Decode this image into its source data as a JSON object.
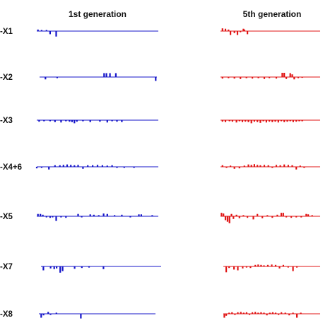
{
  "chart_data": {
    "type": "bar",
    "columns": [
      {
        "title": "1st generation",
        "color": "#1515c8"
      },
      {
        "title": "5th generation",
        "color": "#e01515"
      }
    ],
    "rows": [
      {
        "label": "-X1",
        "panels": [
          [
            [
              0.01,
              0.4
            ],
            [
              0.04,
              0.3
            ],
            [
              0.08,
              0.3
            ],
            [
              0.11,
              -0.8
            ],
            [
              0.16,
              -1.4
            ]
          ],
          [
            [
              0.02,
              0.7
            ],
            [
              0.05,
              0.6
            ],
            [
              0.08,
              0.4
            ],
            [
              0.1,
              -1.0
            ],
            [
              0.14,
              -0.5
            ],
            [
              0.17,
              -1.0
            ],
            [
              0.2,
              -0.3
            ],
            [
              0.23,
              0.6
            ],
            [
              0.27,
              -0.8
            ],
            [
              0.24,
              0.4
            ]
          ]
        ]
      },
      {
        "label": "-X2",
        "panels": [
          [
            [
              0.05,
              -0.6
            ],
            [
              0.15,
              -0.3
            ],
            [
              0.55,
              1.0
            ],
            [
              0.57,
              1.0
            ],
            [
              0.6,
              1.0
            ],
            [
              0.65,
              1.0
            ],
            [
              0.99,
              -1.0
            ]
          ],
          [
            [
              0.02,
              -0.4
            ],
            [
              0.08,
              -0.3
            ],
            [
              0.14,
              -0.4
            ],
            [
              0.2,
              -0.5
            ],
            [
              0.26,
              -0.3
            ],
            [
              0.32,
              -0.4
            ],
            [
              0.38,
              -0.3
            ],
            [
              0.44,
              -0.5
            ],
            [
              0.49,
              -0.3
            ],
            [
              0.56,
              -0.4
            ],
            [
              0.62,
              1.1
            ],
            [
              0.64,
              1.1
            ],
            [
              0.66,
              -0.5
            ],
            [
              0.7,
              1.0
            ],
            [
              0.72,
              0.7
            ],
            [
              0.74,
              -0.6
            ],
            [
              0.78,
              -0.3
            ],
            [
              0.82,
              -0.2
            ]
          ]
        ]
      },
      {
        "label": "-X3",
        "panels": [
          [
            [
              0.02,
              -0.4
            ],
            [
              0.06,
              -0.3
            ],
            [
              0.11,
              -0.3
            ],
            [
              0.15,
              -0.5
            ],
            [
              0.2,
              -0.6
            ],
            [
              0.24,
              -0.3
            ],
            [
              0.27,
              -0.4
            ],
            [
              0.29,
              -0.5
            ],
            [
              0.31,
              -0.8
            ],
            [
              0.33,
              -0.4
            ],
            [
              0.38,
              -0.3
            ],
            [
              0.44,
              -0.5
            ],
            [
              0.52,
              -0.4
            ],
            [
              0.58,
              -0.6
            ],
            [
              0.62,
              -0.3
            ],
            [
              0.66,
              -0.4
            ],
            [
              0.7,
              -0.5
            ]
          ],
          [
            [
              0.02,
              -0.4
            ],
            [
              0.05,
              -0.5
            ],
            [
              0.09,
              -0.3
            ],
            [
              0.12,
              -0.4
            ],
            [
              0.16,
              -0.6
            ],
            [
              0.19,
              -0.3
            ],
            [
              0.22,
              -0.5
            ],
            [
              0.25,
              -0.4
            ],
            [
              0.28,
              -0.5
            ],
            [
              0.31,
              -0.8
            ],
            [
              0.34,
              -0.4
            ],
            [
              0.37,
              -0.5
            ],
            [
              0.4,
              -0.7
            ],
            [
              0.43,
              -0.3
            ],
            [
              0.46,
              -0.6
            ],
            [
              0.49,
              -0.4
            ],
            [
              0.52,
              -0.5
            ],
            [
              0.55,
              -0.4
            ],
            [
              0.58,
              -0.6
            ],
            [
              0.61,
              -0.3
            ],
            [
              0.64,
              -0.5
            ],
            [
              0.67,
              -0.4
            ],
            [
              0.7,
              -0.3
            ],
            [
              0.73,
              -0.5
            ],
            [
              0.76,
              -0.4
            ],
            [
              0.79,
              -0.3
            ],
            [
              0.82,
              -0.3
            ]
          ]
        ]
      },
      {
        "label": "-X4+6",
        "panels": [
          [
            [
              0.0,
              -0.4
            ],
            [
              0.04,
              -0.3
            ],
            [
              0.1,
              -0.7
            ],
            [
              0.15,
              0.4
            ],
            [
              0.19,
              0.4
            ],
            [
              0.22,
              0.5
            ],
            [
              0.25,
              0.6
            ],
            [
              0.28,
              0.5
            ],
            [
              0.31,
              0.4
            ],
            [
              0.34,
              0.5
            ],
            [
              0.38,
              -0.5
            ],
            [
              0.42,
              0.4
            ],
            [
              0.46,
              0.4
            ],
            [
              0.5,
              0.5
            ],
            [
              0.54,
              0.4
            ],
            [
              0.58,
              0.3
            ],
            [
              0.62,
              0.4
            ],
            [
              0.66,
              -0.3
            ],
            [
              0.72,
              -0.3
            ],
            [
              0.8,
              -0.3
            ]
          ],
          [
            [
              0.02,
              0.4
            ],
            [
              0.06,
              -0.3
            ],
            [
              0.1,
              0.3
            ],
            [
              0.14,
              -0.5
            ],
            [
              0.19,
              -0.4
            ],
            [
              0.24,
              0.3
            ],
            [
              0.28,
              0.6
            ],
            [
              0.31,
              0.5
            ],
            [
              0.34,
              0.7
            ],
            [
              0.37,
              0.5
            ],
            [
              0.4,
              0.4
            ],
            [
              0.44,
              0.5
            ],
            [
              0.48,
              0.4
            ],
            [
              0.52,
              -0.3
            ],
            [
              0.56,
              0.5
            ],
            [
              0.6,
              0.4
            ],
            [
              0.64,
              0.6
            ],
            [
              0.68,
              0.5
            ],
            [
              0.72,
              0.4
            ],
            [
              0.76,
              -0.7
            ],
            [
              0.8,
              0.3
            ],
            [
              0.84,
              -0.3
            ]
          ]
        ]
      },
      {
        "label": "-X5",
        "panels": [
          [
            [
              0.01,
              0.6
            ],
            [
              0.03,
              0.6
            ],
            [
              0.05,
              0.4
            ],
            [
              0.08,
              -0.3
            ],
            [
              0.11,
              -0.4
            ],
            [
              0.13,
              -0.3
            ],
            [
              0.16,
              -1.2
            ],
            [
              0.2,
              -0.3
            ],
            [
              0.24,
              -0.4
            ],
            [
              0.34,
              0.6
            ],
            [
              0.37,
              -0.3
            ],
            [
              0.44,
              0.5
            ],
            [
              0.47,
              0.4
            ],
            [
              0.51,
              0.3
            ],
            [
              0.55,
              0.7
            ],
            [
              0.58,
              0.6
            ],
            [
              0.64,
              0.3
            ],
            [
              0.7,
              0.4
            ],
            [
              0.77,
              -0.3
            ],
            [
              0.84,
              0.5
            ],
            [
              0.86,
              0.5
            ],
            [
              0.95,
              0.3
            ]
          ],
          [
            [
              0.01,
              0.9
            ],
            [
              0.03,
              0.7
            ],
            [
              0.05,
              -1.0
            ],
            [
              0.07,
              -1.4
            ],
            [
              0.09,
              -1.8
            ],
            [
              0.11,
              0.6
            ],
            [
              0.13,
              -0.7
            ],
            [
              0.16,
              0.4
            ],
            [
              0.19,
              -0.5
            ],
            [
              0.23,
              0.3
            ],
            [
              0.27,
              -0.4
            ],
            [
              0.33,
              -0.8
            ],
            [
              0.37,
              0.6
            ],
            [
              0.42,
              -0.5
            ],
            [
              0.47,
              0.3
            ],
            [
              0.52,
              -0.4
            ],
            [
              0.57,
              0.4
            ],
            [
              0.61,
              0.9
            ],
            [
              0.63,
              0.9
            ],
            [
              0.66,
              -0.3
            ],
            [
              0.71,
              -0.4
            ],
            [
              0.76,
              -0.3
            ],
            [
              0.81,
              -0.3
            ],
            [
              0.86,
              0.6
            ],
            [
              0.88,
              0.5
            ],
            [
              0.92,
              0.3
            ]
          ]
        ]
      },
      {
        "label": "-X7",
        "panels": [
          [
            [
              0.02,
              -1.0
            ],
            [
              0.08,
              -0.5
            ],
            [
              0.11,
              -0.7
            ],
            [
              0.13,
              -0.5
            ],
            [
              0.16,
              -1.6
            ],
            [
              0.18,
              -1.2
            ],
            [
              0.28,
              -0.6
            ],
            [
              0.34,
              -0.4
            ],
            [
              0.4,
              -0.3
            ],
            [
              0.52,
              -0.7
            ]
          ],
          [
            [
              0.03,
              -1.5
            ],
            [
              0.06,
              -0.4
            ],
            [
              0.11,
              -0.8
            ],
            [
              0.15,
              -1.0
            ],
            [
              0.2,
              -0.5
            ],
            [
              0.24,
              -0.3
            ],
            [
              0.28,
              -0.4
            ],
            [
              0.33,
              0.4
            ],
            [
              0.36,
              0.5
            ],
            [
              0.39,
              0.4
            ],
            [
              0.42,
              0.3
            ],
            [
              0.46,
              0.4
            ],
            [
              0.5,
              0.5
            ],
            [
              0.54,
              0.4
            ],
            [
              0.58,
              -0.5
            ],
            [
              0.62,
              0.4
            ],
            [
              0.67,
              -0.3
            ],
            [
              0.72,
              -1.2
            ],
            [
              0.76,
              -0.3
            ]
          ]
        ]
      },
      {
        "label": "-X8",
        "panels": [
          [
            [
              0.02,
              -1.0
            ],
            [
              0.04,
              -0.4
            ],
            [
              0.08,
              0.5
            ],
            [
              0.1,
              -0.3
            ],
            [
              0.15,
              0.3
            ],
            [
              0.36,
              -1.2
            ]
          ],
          [
            [
              0.01,
              -1.0
            ],
            [
              0.03,
              -0.5
            ],
            [
              0.06,
              0.3
            ],
            [
              0.09,
              0.4
            ],
            [
              0.12,
              -0.3
            ],
            [
              0.15,
              0.4
            ],
            [
              0.18,
              0.5
            ],
            [
              0.21,
              0.3
            ],
            [
              0.24,
              0.4
            ],
            [
              0.27,
              -0.3
            ],
            [
              0.3,
              0.4
            ],
            [
              0.33,
              0.5
            ],
            [
              0.36,
              0.3
            ],
            [
              0.39,
              0.4
            ],
            [
              0.42,
              0.3
            ],
            [
              0.45,
              -0.4
            ],
            [
              0.48,
              0.3
            ],
            [
              0.51,
              0.4
            ],
            [
              0.54,
              0.3
            ],
            [
              0.57,
              -0.3
            ],
            [
              0.6,
              0.4
            ],
            [
              0.64,
              0.3
            ],
            [
              0.68,
              -0.4
            ],
            [
              0.72,
              0.3
            ],
            [
              0.76,
              -1.0
            ],
            [
              0.8,
              0.3
            ]
          ]
        ]
      }
    ]
  }
}
